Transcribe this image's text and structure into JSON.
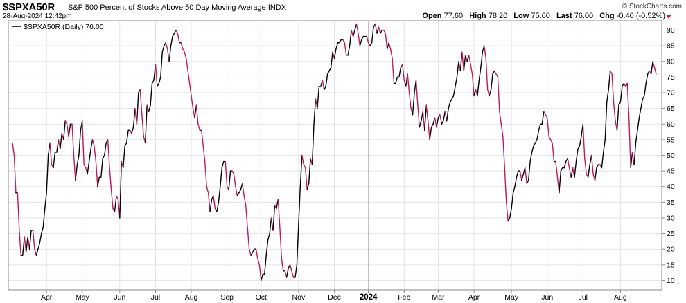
{
  "header": {
    "symbol": "$SPXA50R",
    "description": "S&P 500 Percent of Stocks Above 50 Day Moving Average",
    "exchange": "INDX",
    "timestamp": "28-Aug-2024 12:42pm",
    "brand": "© StockCharts.com",
    "open_label": "Open",
    "open": "77.60",
    "high_label": "High",
    "high": "78.20",
    "low_label": "Low",
    "low": "75.60",
    "last_label": "Last",
    "last": "76.00",
    "chg_label": "Chg",
    "chg": "-0.40 (-0.52%)"
  },
  "colors": {
    "up": "#000000",
    "down": "#c2185b",
    "grid": "#e3e3e3",
    "axis": "#888888",
    "chg_arrow": "#c2185b"
  },
  "chart_data": {
    "type": "line",
    "legend": "$SPXA50R (Daily) 76.00",
    "ylim": [
      7,
      93
    ],
    "yticks": [
      10,
      15,
      20,
      25,
      30,
      35,
      40,
      45,
      50,
      55,
      60,
      65,
      70,
      75,
      80,
      85,
      90
    ],
    "xticks": [
      "Apr",
      "May",
      "Jun",
      "Jul",
      "Aug",
      "Sep",
      "Oct",
      "Nov",
      "Dec",
      "2024",
      "Feb",
      "Mar",
      "Apr",
      "May",
      "Jun",
      "Jul",
      "Aug"
    ],
    "xtick_index": [
      20,
      41,
      63,
      84,
      105,
      126,
      146,
      168,
      189,
      209,
      230,
      250,
      271,
      293,
      314,
      335,
      357
    ],
    "series": [
      {
        "values": [
          54,
          50,
          38,
          38,
          26,
          18,
          18,
          24,
          19,
          24,
          20,
          26,
          26,
          20,
          18,
          20,
          22,
          25,
          27,
          33,
          38,
          50,
          54,
          47,
          46,
          51,
          51,
          55,
          52,
          57,
          55,
          61,
          60,
          56,
          60,
          60,
          50,
          42,
          47,
          50,
          58,
          61,
          47,
          46,
          44,
          48,
          52,
          55,
          53,
          48,
          40,
          43,
          43,
          49,
          50,
          54,
          55,
          46,
          39,
          33,
          32,
          37,
          36,
          30,
          48,
          46,
          53,
          54,
          58,
          58,
          57,
          59,
          65,
          60,
          70,
          71,
          63,
          56,
          54,
          66,
          64,
          66,
          73,
          74,
          79,
          72,
          73,
          75,
          83,
          85,
          86,
          84,
          80,
          85,
          88,
          89,
          90,
          89,
          86,
          86,
          84,
          83,
          81,
          77,
          73,
          69,
          65,
          62,
          66,
          60,
          58,
          58,
          53,
          48,
          40,
          38,
          32,
          36,
          37,
          33,
          32,
          35,
          40,
          46,
          48,
          48,
          40,
          39,
          45,
          45,
          44,
          40,
          37,
          38,
          39,
          41,
          37,
          34,
          27,
          20,
          18,
          19,
          20,
          20,
          17,
          15,
          10,
          12,
          12,
          18,
          23,
          25,
          30,
          26,
          34,
          33,
          36,
          27,
          17,
          13,
          13,
          11,
          14,
          15,
          13,
          11,
          11,
          15,
          28,
          40,
          50,
          47,
          46,
          39,
          41,
          49,
          47,
          60,
          68,
          65,
          72,
          72,
          74,
          71,
          72,
          76,
          77,
          78,
          83,
          81,
          84,
          86,
          86,
          87,
          87,
          86,
          82,
          82,
          85,
          90,
          88,
          90,
          92,
          89,
          85,
          87,
          88,
          88,
          88,
          86,
          85,
          86,
          91,
          92,
          89,
          91,
          89,
          90,
          90,
          89,
          84,
          86,
          84,
          81,
          73,
          73,
          75,
          75,
          78,
          79,
          74,
          72,
          76,
          70,
          65,
          63,
          70,
          74,
          66,
          59,
          61,
          64,
          58,
          66,
          61,
          55,
          59,
          60,
          62,
          59,
          62,
          63,
          60,
          61,
          64,
          61,
          65,
          67,
          68,
          69,
          72,
          75,
          80,
          77,
          83,
          77,
          82,
          80,
          82,
          79,
          76,
          69,
          71,
          69,
          74,
          78,
          83,
          85,
          81,
          71,
          69,
          71,
          76,
          77,
          76,
          75,
          64,
          60,
          56,
          46,
          35,
          29,
          30,
          33,
          38,
          40,
          43,
          45,
          45,
          42,
          44,
          46,
          41,
          42,
          48,
          51,
          53,
          54,
          55,
          58,
          60,
          60,
          64,
          63,
          62,
          56,
          55,
          54,
          48,
          48,
          43,
          38,
          45,
          46,
          46,
          48,
          49,
          46,
          43,
          46,
          43,
          48,
          52,
          53,
          56,
          60,
          49,
          44,
          43,
          47,
          50,
          44,
          42,
          46,
          47,
          47,
          46,
          51,
          55,
          67,
          71,
          77,
          76,
          67,
          61,
          58,
          66,
          67,
          72,
          73,
          72,
          73,
          62,
          46,
          51,
          47,
          54,
          58,
          62,
          65,
          68,
          69,
          73,
          76,
          77,
          76,
          80,
          78,
          76
        ]
      }
    ]
  }
}
